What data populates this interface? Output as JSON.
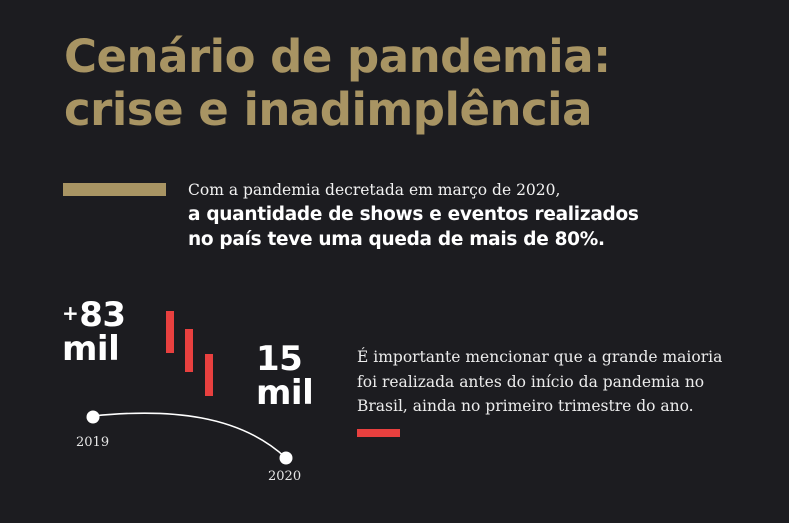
{
  "title": {
    "line1": "Cenário de pandemia:",
    "line2": "crise e inadimplência"
  },
  "intro": {
    "line1": "Com a pandemia decretada em março de 2020,",
    "line2": "a quantidade de shows e eventos realizados",
    "line3": "no país teve uma queda de mais de 80%."
  },
  "stats": {
    "y2019": {
      "prefix": "+",
      "value": "83",
      "unit": "mil",
      "year": "2019"
    },
    "y2020": {
      "value": "15",
      "unit": "mil",
      "year": "2020"
    }
  },
  "note": {
    "line1": "É importante mencionar que a grande maioria",
    "line2": "foi realizada antes do início da pandemia no",
    "line3": "Brasil, ainda no primeiro trimestre do ano."
  },
  "colors": {
    "background": "#1c1c20",
    "gold": "#a89463",
    "red": "#e8403f",
    "white": "#ffffff"
  }
}
